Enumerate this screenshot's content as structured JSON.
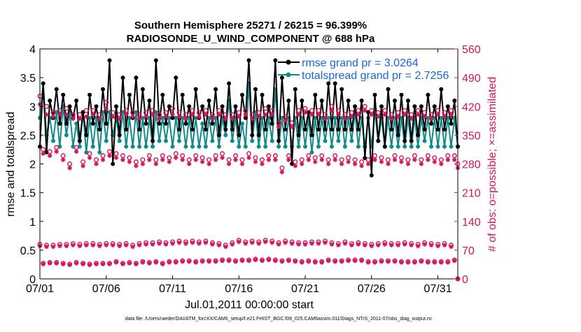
{
  "chart_data": {
    "type": "line",
    "title_line1": "Southern Hemisphere 25271 / 26215 = 96.399%",
    "title_line2": "RADIOSONDE_U_WIND_COMPONENT @ 688 hPa",
    "xlabel": "Jul.01,2011 00:00:00 start",
    "ylabel": "rmse and totalspread",
    "ylabel_right": "# of obs: o=possible; ×=assimilated",
    "footnote": "data file: /Users/raeder/DAI/ATM_forcXX/CAM6_setup/f.e21.FHIST_BGC.f09_025.CAM6assim.011/Diags_NTrS_2011-07/obs_diag_output.nc",
    "xlim": [
      0,
      31.5
    ],
    "ylim": [
      0,
      4
    ],
    "ylim_right": [
      0,
      560
    ],
    "x_ticks": [
      0,
      5,
      10,
      15,
      20,
      25,
      30
    ],
    "x_tick_labels": [
      "07/01",
      "07/06",
      "07/11",
      "07/16",
      "07/21",
      "07/26",
      "07/31"
    ],
    "y_tick_labels": [
      "0",
      "0.5",
      "1",
      "1.5",
      "2",
      "2.5",
      "3",
      "3.5",
      "4"
    ],
    "y_right_tick_labels": [
      "0",
      "70",
      "140",
      "210",
      "280",
      "350",
      "420",
      "490",
      "560"
    ],
    "colors": {
      "rmse": "#000000",
      "spread": "#138a8a",
      "obs": "#d4145a",
      "legend_text": "#1a66d9"
    },
    "series": [
      {
        "name": "rmse grand pr = 3.0264",
        "values": [
          2.3,
          3.4,
          2.2,
          3.1,
          2.8,
          3.3,
          2.7,
          3.2,
          2.7,
          3.0,
          2.8,
          3.1,
          2.4,
          2.9,
          2.5,
          3.2,
          2.7,
          3.0,
          2.6,
          3.3,
          2.7,
          3.8,
          2.0,
          3.0,
          2.5,
          3.5,
          2.6,
          3.2,
          2.8,
          3.5,
          2.6,
          3.3,
          2.7,
          3.1,
          2.4,
          3.8,
          2.7,
          3.2,
          2.7,
          3.0,
          2.8,
          3.5,
          2.6,
          3.2,
          2.7,
          3.0,
          2.6,
          3.3,
          2.8,
          3.0,
          2.6,
          3.1,
          2.7,
          3.3,
          2.5,
          3.0,
          2.6,
          3.4,
          2.6,
          3.0,
          2.5,
          3.2,
          2.8,
          3.8,
          2.5,
          3.3,
          2.5,
          3.2,
          2.6,
          3.0,
          2.7,
          3.8,
          2.4,
          3.5,
          2.6,
          3.1,
          2.0,
          3.3,
          2.5,
          3.1,
          2.6,
          2.9,
          2.5,
          3.2,
          2.6,
          3.1,
          2.6,
          3.4,
          2.6,
          3.4,
          2.6,
          3.3,
          2.6,
          3.1,
          2.6,
          3.0,
          2.6,
          3.1,
          2.1,
          2.9,
          1.8,
          3.2,
          2.4,
          3.0,
          2.3,
          3.3,
          2.6,
          3.1,
          2.5,
          3.2,
          2.4,
          3.1,
          2.4,
          3.0,
          2.5,
          3.0,
          2.6,
          3.2,
          2.7,
          3.0,
          2.6,
          3.3,
          2.6,
          3.0,
          2.7,
          3.1,
          2.3
        ]
      },
      {
        "name": "totalspread grand pr = 2.7256",
        "values": [
          2.8,
          3.4,
          2.5,
          2.8,
          2.4,
          2.9,
          2.3,
          3.0,
          2.5,
          2.9,
          2.3,
          2.7,
          2.3,
          2.9,
          2.2,
          2.8,
          2.3,
          2.8,
          2.2,
          2.9,
          2.4,
          2.9,
          2.5,
          2.8,
          2.4,
          2.9,
          2.3,
          2.8,
          2.3,
          2.9,
          2.3,
          2.8,
          2.3,
          2.8,
          2.3,
          2.9,
          2.4,
          2.8,
          2.4,
          2.8,
          2.3,
          2.8,
          2.4,
          2.8,
          2.3,
          2.8,
          2.3,
          2.8,
          2.3,
          2.7,
          2.3,
          2.8,
          2.4,
          2.8,
          2.3,
          2.8,
          2.5,
          3.1,
          2.4,
          2.8,
          2.3,
          2.7,
          2.3,
          3.4,
          2.4,
          2.9,
          2.3,
          2.8,
          2.3,
          2.8,
          2.4,
          3.3,
          2.3,
          2.8,
          2.3,
          2.8,
          2.3,
          2.8,
          2.3,
          2.8,
          2.3,
          2.8,
          2.2,
          2.8,
          2.3,
          2.8,
          2.4,
          2.8,
          2.3,
          2.8,
          2.4,
          2.8,
          2.3,
          2.8,
          2.4,
          2.9,
          2.3,
          2.8,
          2.3,
          2.8,
          2.3,
          2.9,
          2.4,
          2.8,
          2.3,
          2.8,
          2.3,
          2.8,
          2.3,
          2.8,
          2.3,
          2.8,
          2.3,
          2.8,
          2.3,
          2.8,
          2.4,
          2.8,
          2.3,
          2.8,
          2.3,
          2.8,
          2.3,
          2.8,
          2.3,
          2.8,
          2.3
        ]
      }
    ],
    "obs_possible": [
      84,
      38,
      82,
      40,
      82,
      40,
      84,
      38,
      84,
      36,
      86,
      40,
      84,
      38,
      86,
      36,
      86,
      38,
      84,
      38,
      86,
      38,
      86,
      42,
      84,
      38,
      86,
      40,
      82,
      38,
      86,
      42,
      88,
      40,
      88,
      42,
      90,
      38,
      88,
      42,
      90,
      42,
      92,
      44,
      90,
      44,
      92,
      42,
      90,
      44,
      92,
      44,
      88,
      44,
      86,
      46,
      82,
      46,
      88,
      44,
      94,
      46,
      90,
      46,
      92,
      48,
      90,
      46,
      94,
      48,
      92,
      46,
      88,
      44,
      92,
      46,
      90,
      44,
      88,
      42,
      88,
      44,
      90,
      42,
      90,
      42,
      92,
      46,
      88,
      44,
      86,
      44,
      90,
      46,
      86,
      46,
      88,
      46,
      86,
      42,
      84,
      42,
      86,
      44,
      88,
      44,
      86,
      44,
      86,
      42,
      88,
      42,
      86,
      42,
      84,
      44,
      88,
      42,
      86,
      42,
      84,
      42,
      86,
      42,
      82,
      46,
      0
    ],
    "obs_assimilated": [
      80,
      36,
      78,
      38,
      78,
      38,
      80,
      36,
      80,
      34,
      82,
      38,
      80,
      36,
      82,
      34,
      82,
      36,
      80,
      36,
      82,
      36,
      82,
      40,
      80,
      36,
      82,
      38,
      78,
      36,
      82,
      40,
      84,
      38,
      84,
      40,
      86,
      36,
      84,
      40,
      86,
      40,
      88,
      42,
      86,
      42,
      88,
      40,
      86,
      42,
      88,
      42,
      84,
      42,
      82,
      44,
      78,
      44,
      84,
      42,
      90,
      44,
      86,
      44,
      88,
      46,
      86,
      44,
      90,
      46,
      88,
      44,
      84,
      42,
      88,
      44,
      86,
      42,
      84,
      40,
      84,
      42,
      86,
      40,
      86,
      40,
      88,
      44,
      84,
      42,
      82,
      42,
      86,
      44,
      82,
      44,
      84,
      44,
      82,
      40,
      80,
      40,
      82,
      42,
      84,
      42,
      82,
      42,
      82,
      40,
      84,
      40,
      82,
      40,
      80,
      42,
      84,
      40,
      82,
      40,
      80,
      40,
      82,
      40,
      78,
      44,
      0
    ],
    "obs_possible_upper": [
      445,
      315,
      420,
      310,
      405,
      320,
      410,
      300,
      415,
      280,
      400,
      320,
      400,
      285,
      410,
      305,
      410,
      290,
      400,
      300,
      430,
      310,
      405,
      305,
      400,
      300,
      410,
      295,
      405,
      285,
      400,
      290,
      405,
      300,
      410,
      290,
      400,
      300,
      405,
      295,
      415,
      305,
      405,
      300,
      400,
      290,
      410,
      300,
      405,
      295,
      410,
      290,
      400,
      300,
      410,
      305,
      400,
      290,
      400,
      300,
      405,
      290,
      410,
      305,
      400,
      295,
      405,
      290,
      415,
      300,
      410,
      300,
      380,
      270,
      395,
      300,
      380,
      285,
      410,
      290,
      415,
      300,
      410,
      295,
      410,
      300,
      400,
      290,
      420,
      300,
      410,
      290,
      400,
      295,
      405,
      290,
      410,
      285,
      420,
      290,
      410,
      300,
      405,
      295,
      410,
      290,
      400,
      300,
      405,
      295,
      410,
      290,
      400,
      300,
      410,
      290,
      405,
      300,
      400,
      295,
      410,
      290,
      405,
      300,
      410,
      300,
      280
    ],
    "obs_assimilated_upper": [
      425,
      305,
      400,
      300,
      395,
      310,
      400,
      290,
      400,
      270,
      390,
      310,
      390,
      275,
      395,
      295,
      400,
      280,
      390,
      290,
      415,
      300,
      395,
      295,
      390,
      290,
      400,
      285,
      395,
      275,
      390,
      280,
      395,
      290,
      400,
      280,
      390,
      290,
      395,
      285,
      400,
      295,
      395,
      290,
      390,
      280,
      400,
      290,
      395,
      285,
      400,
      280,
      390,
      290,
      400,
      295,
      390,
      280,
      390,
      290,
      395,
      280,
      400,
      295,
      390,
      285,
      395,
      280,
      400,
      290,
      400,
      290,
      370,
      260,
      385,
      290,
      370,
      275,
      400,
      280,
      405,
      290,
      400,
      285,
      400,
      290,
      390,
      280,
      410,
      290,
      400,
      280,
      390,
      285,
      395,
      280,
      400,
      275,
      410,
      280,
      400,
      290,
      395,
      285,
      400,
      280,
      390,
      290,
      395,
      285,
      400,
      280,
      390,
      290,
      400,
      280,
      395,
      290,
      390,
      285,
      400,
      280,
      395,
      290,
      400,
      290,
      270
    ]
  }
}
